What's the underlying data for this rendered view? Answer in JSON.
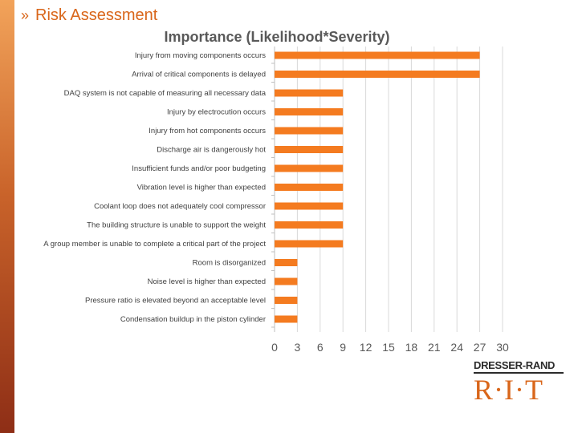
{
  "slide": {
    "title": "Risk Assessment",
    "bullet": "»",
    "accent_color": "#d9661a"
  },
  "logo": {
    "top_text": "DRESSER-RAND",
    "bottom_text": "R·I·T"
  },
  "chart_data": {
    "type": "bar",
    "orientation": "horizontal",
    "title": "Importance (Likelihood*Severity)",
    "xlabel": "",
    "ylabel": "",
    "xlim": [
      0,
      30
    ],
    "xticks": [
      0,
      3,
      6,
      9,
      12,
      15,
      18,
      21,
      24,
      27,
      30
    ],
    "grid": true,
    "bar_color": "#f47b20",
    "categories": [
      "Injury from moving components occurs",
      "Arrival of critical components is delayed",
      "DAQ system is not capable of measuring all necessary data",
      "Injury by electrocution occurs",
      "Injury from hot components occurs",
      "Discharge air is dangerously hot",
      "Insufficient funds and/or poor budgeting",
      "Vibration level is higher than expected",
      "Coolant loop does not adequately cool compressor",
      "The building structure is unable to support the weight",
      "A group member is unable to complete a critical part of the project",
      "Room is disorganized",
      "Noise level is higher than expected",
      "Pressure ratio is elevated beyond an acceptable level",
      "Condensation buildup in the piston cylinder"
    ],
    "values": [
      27,
      27,
      9,
      9,
      9,
      9,
      9,
      9,
      9,
      9,
      9,
      3,
      3,
      3,
      3
    ]
  }
}
